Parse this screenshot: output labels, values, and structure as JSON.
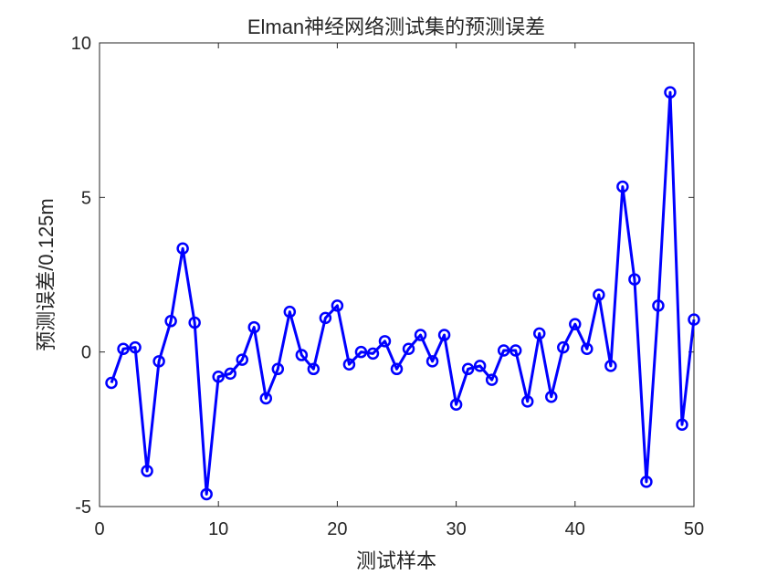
{
  "chart_data": {
    "type": "line",
    "title": "Elman神经网络测试集的预测误差",
    "xlabel": "测试样本",
    "ylabel": "预测误差/0.125m",
    "xlim": [
      0,
      50
    ],
    "ylim": [
      -5,
      10
    ],
    "xticks": [
      0,
      10,
      20,
      30,
      40,
      50
    ],
    "yticks": [
      -5,
      0,
      5,
      10
    ],
    "xtick_labels": [
      "0",
      "10",
      "20",
      "30",
      "40",
      "50"
    ],
    "ytick_labels": [
      "-5",
      "0",
      "5",
      "10"
    ],
    "grid": false,
    "marker": "circle",
    "line_color": "#0000ff",
    "axis_color": "#262626",
    "series": [
      {
        "x": [
          1,
          2,
          3,
          4,
          5,
          6,
          7,
          8,
          9,
          10,
          11,
          12,
          13,
          14,
          15,
          16,
          17,
          18,
          19,
          20,
          21,
          22,
          23,
          24,
          25,
          26,
          27,
          28,
          29,
          30,
          31,
          32,
          33,
          34,
          35,
          36,
          37,
          38,
          39,
          40,
          41,
          42,
          43,
          44,
          45,
          46,
          47,
          48,
          49,
          50
        ],
        "values": [
          -1.0,
          0.1,
          0.15,
          -3.85,
          -0.3,
          1.0,
          3.35,
          0.95,
          -4.6,
          -0.8,
          -0.7,
          -0.25,
          0.8,
          -1.5,
          -0.55,
          1.3,
          -0.1,
          -0.55,
          1.1,
          1.5,
          -0.4,
          0.0,
          -0.05,
          0.35,
          -0.55,
          0.1,
          0.55,
          -0.3,
          0.55,
          -1.7,
          -0.55,
          -0.45,
          -0.9,
          0.05,
          0.05,
          -1.6,
          0.6,
          -1.45,
          0.15,
          0.9,
          0.1,
          1.85,
          -0.45,
          5.35,
          2.35,
          -4.2,
          1.5,
          8.4,
          -2.35,
          1.05
        ]
      }
    ]
  }
}
